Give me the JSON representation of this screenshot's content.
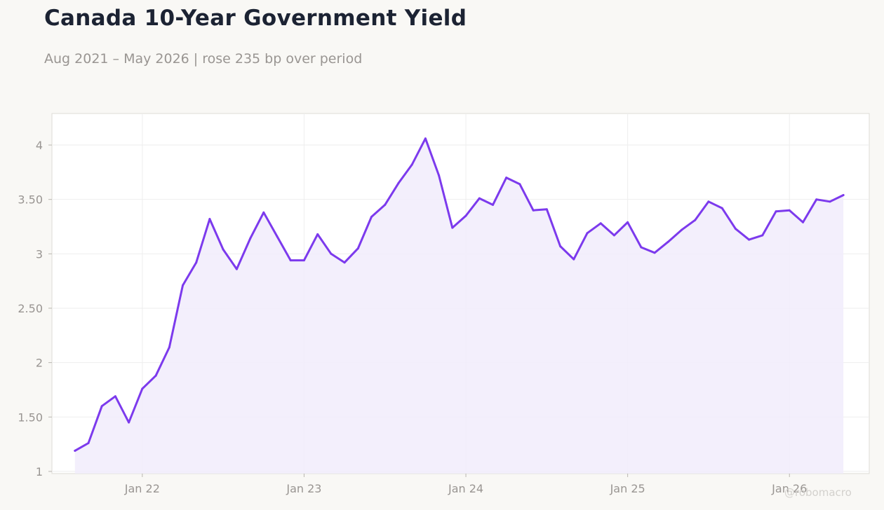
{
  "title": "Canada 10-Year Government Yield",
  "subtitle": "Aug 2021 – May 2026 | rose 235 bp over period",
  "watermark": "@robomacro",
  "colors": {
    "line": "#7c3aed",
    "fill": "#f1ecfc",
    "background": "#f9f8f5",
    "plot_background": "#ffffff",
    "grid": "#eeeeee",
    "tick_text": "#999592",
    "title": "#1c2333"
  },
  "chart_data": {
    "type": "area",
    "title": "Canada 10-Year Government Yield",
    "subtitle": "Aug 2021 – May 2026 | rose 235 bp over period",
    "xlabel": "",
    "ylabel": "",
    "x_ticks": [
      "Jan 22",
      "Jan 23",
      "Jan 24",
      "Jan 25",
      "Jan 26"
    ],
    "y_ticks": [
      "1",
      "1.50",
      "2",
      "2.50",
      "3",
      "3.50",
      "4"
    ],
    "y_tick_values": [
      1,
      1.5,
      2,
      2.5,
      3,
      3.5,
      4
    ],
    "ylim": [
      0.98,
      4.29
    ],
    "xlim": [
      "2021-06-10",
      "2026-06-29"
    ],
    "grid": true,
    "legend": "none",
    "series": [
      {
        "x": [
          "2021-08",
          "2021-09",
          "2021-10",
          "2021-11",
          "2021-12",
          "2022-01",
          "2022-02",
          "2022-03",
          "2022-04",
          "2022-05",
          "2022-06",
          "2022-07",
          "2022-08",
          "2022-09",
          "2022-10",
          "2022-11",
          "2022-12",
          "2023-01",
          "2023-02",
          "2023-03",
          "2023-04",
          "2023-05",
          "2023-06",
          "2023-07",
          "2023-08",
          "2023-09",
          "2023-10",
          "2023-11",
          "2023-12",
          "2024-01",
          "2024-02",
          "2024-03",
          "2024-04",
          "2024-05",
          "2024-06",
          "2024-07",
          "2024-08",
          "2024-09",
          "2024-10",
          "2024-11",
          "2024-12",
          "2025-01",
          "2025-02",
          "2025-03",
          "2025-04",
          "2025-05",
          "2025-06",
          "2025-07",
          "2025-08",
          "2025-09",
          "2025-10",
          "2025-11",
          "2025-12",
          "2026-01",
          "2026-02",
          "2026-03",
          "2026-04",
          "2026-05"
        ],
        "values": [
          1.19,
          1.26,
          1.6,
          1.69,
          1.45,
          1.76,
          1.88,
          2.14,
          2.71,
          2.92,
          3.32,
          3.04,
          2.86,
          3.14,
          3.38,
          3.16,
          2.94,
          2.94,
          3.18,
          3.0,
          2.92,
          3.05,
          3.34,
          3.45,
          3.65,
          3.82,
          4.06,
          3.72,
          3.24,
          3.35,
          3.51,
          3.45,
          3.7,
          3.64,
          3.4,
          3.41,
          3.07,
          2.95,
          3.19,
          3.28,
          3.17,
          3.29,
          3.06,
          3.01,
          3.11,
          3.22,
          3.31,
          3.48,
          3.42,
          3.23,
          3.13,
          3.17,
          3.39,
          3.4,
          3.29,
          3.5,
          3.48,
          3.54
        ]
      }
    ]
  }
}
